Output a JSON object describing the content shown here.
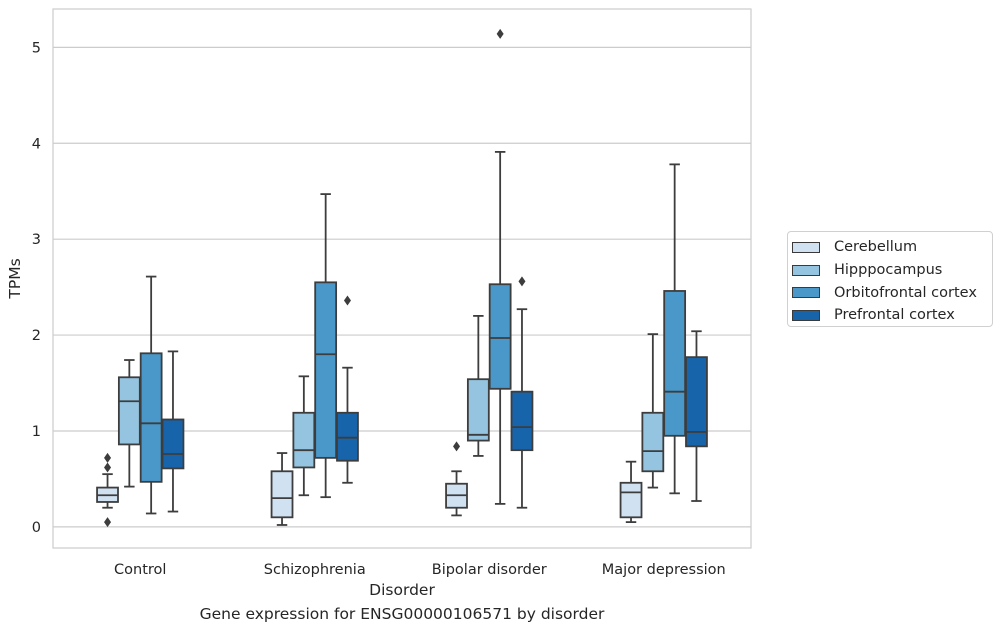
{
  "caption": "Gene expression for ENSG00000106571 by disorder",
  "chart_data": {
    "type": "boxplot",
    "xlabel": "Disorder",
    "ylabel": "TPMs",
    "ylim": [
      -0.22,
      5.4
    ],
    "yticks": [
      0,
      1,
      2,
      3,
      4,
      5
    ],
    "grid": "horizontal",
    "legend_position": "right",
    "categories": [
      "Control",
      "Schizophrenia",
      "Bipolar disorder",
      "Major depression"
    ],
    "series": [
      {
        "name": "Cerebellum",
        "color": "#d0e1f2",
        "boxes": [
          {
            "whislo": 0.2,
            "q1": 0.26,
            "med": 0.33,
            "q3": 0.41,
            "whishi": 0.55,
            "fliers": [
              0.05,
              0.62,
              0.72
            ]
          },
          {
            "whislo": 0.02,
            "q1": 0.1,
            "med": 0.3,
            "q3": 0.58,
            "whishi": 0.77,
            "fliers": []
          },
          {
            "whislo": 0.12,
            "q1": 0.2,
            "med": 0.33,
            "q3": 0.45,
            "whishi": 0.58,
            "fliers": [
              0.84
            ]
          },
          {
            "whislo": 0.05,
            "q1": 0.1,
            "med": 0.36,
            "q3": 0.46,
            "whishi": 0.68,
            "fliers": []
          }
        ]
      },
      {
        "name": "Hipppocampus",
        "color": "#94c4df",
        "boxes": [
          {
            "whislo": 0.42,
            "q1": 0.86,
            "med": 1.31,
            "q3": 1.56,
            "whishi": 1.74,
            "fliers": []
          },
          {
            "whislo": 0.33,
            "q1": 0.62,
            "med": 0.8,
            "q3": 1.19,
            "whishi": 1.57,
            "fliers": []
          },
          {
            "whislo": 0.74,
            "q1": 0.9,
            "med": 0.96,
            "q3": 1.54,
            "whishi": 2.2,
            "fliers": []
          },
          {
            "whislo": 0.41,
            "q1": 0.58,
            "med": 0.79,
            "q3": 1.19,
            "whishi": 2.01,
            "fliers": []
          }
        ]
      },
      {
        "name": "Orbitofrontal cortex",
        "color": "#4a98c9",
        "boxes": [
          {
            "whislo": 0.14,
            "q1": 0.47,
            "med": 1.08,
            "q3": 1.81,
            "whishi": 2.61,
            "fliers": []
          },
          {
            "whislo": 0.31,
            "q1": 0.72,
            "med": 1.8,
            "q3": 2.55,
            "whishi": 3.47,
            "fliers": []
          },
          {
            "whislo": 0.24,
            "q1": 1.44,
            "med": 1.97,
            "q3": 2.53,
            "whishi": 3.91,
            "fliers": [
              5.14
            ]
          },
          {
            "whislo": 0.35,
            "q1": 0.95,
            "med": 1.41,
            "q3": 2.46,
            "whishi": 3.78,
            "fliers": []
          }
        ]
      },
      {
        "name": "Prefrontal cortex",
        "color": "#1764ab",
        "boxes": [
          {
            "whislo": 0.16,
            "q1": 0.61,
            "med": 0.76,
            "q3": 1.12,
            "whishi": 1.83,
            "fliers": []
          },
          {
            "whislo": 0.46,
            "q1": 0.69,
            "med": 0.93,
            "q3": 1.19,
            "whishi": 1.66,
            "fliers": [
              2.36
            ]
          },
          {
            "whislo": 0.2,
            "q1": 0.8,
            "med": 1.04,
            "q3": 1.41,
            "whishi": 2.27,
            "fliers": [
              2.56
            ]
          },
          {
            "whislo": 0.27,
            "q1": 0.84,
            "med": 0.99,
            "q3": 1.77,
            "whishi": 2.04,
            "fliers": []
          }
        ]
      }
    ]
  }
}
